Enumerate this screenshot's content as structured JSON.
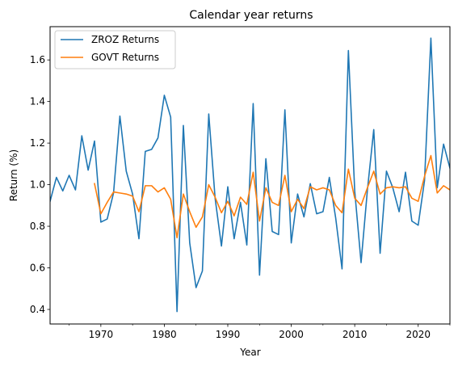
{
  "chart_data": {
    "type": "line",
    "title": "Calendar year returns",
    "xlabel": "Year",
    "ylabel": "Return (%)",
    "xlim": [
      1962,
      2025
    ],
    "ylim": [
      0.33,
      1.76
    ],
    "x_major_ticks": [
      1970,
      1980,
      1990,
      2000,
      2010,
      2020
    ],
    "x_minor_ticks": [
      1965,
      1975,
      1985,
      1995,
      2005,
      2015,
      2025
    ],
    "y_ticks": [
      0.4,
      0.6,
      0.8,
      1.0,
      1.2,
      1.4,
      1.6
    ],
    "y_tick_labels": [
      "0.4",
      "0.6",
      "0.8",
      "1.0",
      "1.2",
      "1.4",
      "1.6"
    ],
    "x_tick_labels": [
      "1970",
      "1980",
      "1990",
      "2000",
      "2010",
      "2020"
    ],
    "grid": false,
    "legend_position": "top-left",
    "series": [
      {
        "name": "ZROZ Returns",
        "color": "#1f77b4",
        "x": [
          1962,
          1963,
          1964,
          1965,
          1966,
          1967,
          1968,
          1969,
          1970,
          1971,
          1972,
          1973,
          1974,
          1975,
          1976,
          1977,
          1978,
          1979,
          1980,
          1981,
          1982,
          1983,
          1984,
          1985,
          1986,
          1987,
          1988,
          1989,
          1990,
          1991,
          1992,
          1993,
          1994,
          1995,
          1996,
          1997,
          1998,
          1999,
          2000,
          2001,
          2002,
          2003,
          2004,
          2005,
          2006,
          2007,
          2008,
          2009,
          2010,
          2011,
          2012,
          2013,
          2014,
          2015,
          2016,
          2017,
          2018,
          2019,
          2020,
          2021,
          2022,
          2023,
          2024,
          2025
        ],
        "y": [
          0.92,
          1.035,
          0.97,
          1.045,
          0.975,
          1.235,
          1.07,
          1.21,
          0.82,
          0.835,
          0.96,
          1.33,
          1.065,
          0.955,
          0.74,
          1.16,
          1.17,
          1.225,
          1.43,
          1.325,
          0.39,
          1.285,
          0.72,
          0.505,
          0.585,
          1.34,
          0.935,
          0.705,
          0.99,
          0.74,
          0.915,
          0.71,
          1.39,
          0.565,
          1.125,
          0.775,
          0.76,
          1.36,
          0.72,
          0.955,
          0.845,
          1.005,
          0.86,
          0.87,
          1.035,
          0.84,
          0.595,
          1.645,
          0.97,
          0.625,
          0.975,
          1.265,
          0.67,
          1.065,
          0.985,
          0.87,
          1.06,
          0.825,
          0.805,
          1.02,
          1.705,
          0.985,
          1.195,
          1.08
        ]
      },
      {
        "name": "GOVT Returns",
        "color": "#ff7f0e",
        "x": [
          1969,
          1970,
          1971,
          1972,
          1973,
          1974,
          1975,
          1976,
          1977,
          1978,
          1979,
          1980,
          1981,
          1982,
          1983,
          1984,
          1985,
          1986,
          1987,
          1988,
          1989,
          1990,
          1991,
          1992,
          1993,
          1994,
          1995,
          1996,
          1997,
          1998,
          1999,
          2000,
          2001,
          2002,
          2003,
          2004,
          2005,
          2006,
          2007,
          2008,
          2009,
          2010,
          2011,
          2012,
          2013,
          2014,
          2015,
          2016,
          2017,
          2018,
          2019,
          2020,
          2021,
          2022,
          2023,
          2024,
          2025
        ],
        "y": [
          1.005,
          0.86,
          0.915,
          0.965,
          0.96,
          0.955,
          0.945,
          0.87,
          0.995,
          0.995,
          0.965,
          0.985,
          0.93,
          0.745,
          0.955,
          0.87,
          0.795,
          0.845,
          1.0,
          0.94,
          0.865,
          0.92,
          0.85,
          0.94,
          0.905,
          1.06,
          0.825,
          0.985,
          0.915,
          0.9,
          1.045,
          0.87,
          0.93,
          0.885,
          0.99,
          0.975,
          0.985,
          0.975,
          0.9,
          0.865,
          1.075,
          0.935,
          0.9,
          0.985,
          1.065,
          0.955,
          0.985,
          0.99,
          0.985,
          0.99,
          0.935,
          0.92,
          1.04,
          1.14,
          0.96,
          0.995,
          0.975
        ]
      }
    ]
  }
}
